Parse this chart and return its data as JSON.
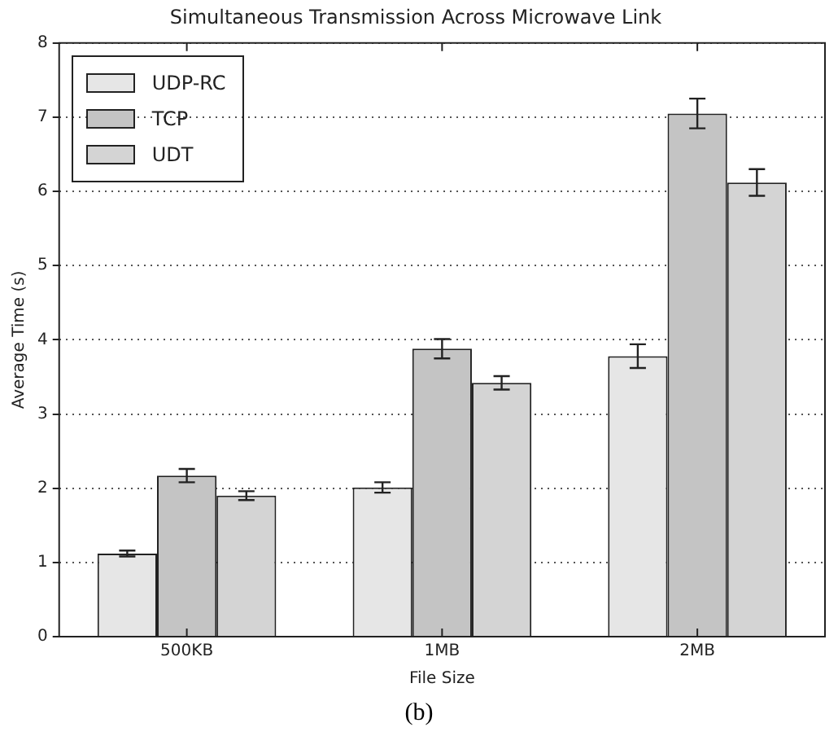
{
  "chart_data": {
    "type": "bar",
    "title": "Simultaneous Transmission Across Microwave Link",
    "xlabel": "File Size",
    "ylabel": "Average Time (s)",
    "categories": [
      "500KB",
      "1MB",
      "2MB"
    ],
    "series": [
      {
        "name": "UDP-RC",
        "color": "#e6e6e6",
        "values": [
          1.12,
          2.01,
          3.78
        ],
        "errors": [
          0.04,
          0.07,
          0.16
        ]
      },
      {
        "name": "TCP",
        "color": "#c4c4c4",
        "values": [
          2.17,
          3.88,
          7.05
        ],
        "errors": [
          0.09,
          0.13,
          0.2
        ]
      },
      {
        "name": "UDT",
        "color": "#d4d4d4",
        "values": [
          1.9,
          3.42,
          6.12
        ],
        "errors": [
          0.06,
          0.09,
          0.18
        ]
      }
    ],
    "ylim": [
      0,
      8
    ],
    "yticks": [
      0,
      1,
      2,
      3,
      4,
      5,
      6,
      7,
      8
    ],
    "grid": "y",
    "legend": "top left",
    "line_style": "dotted",
    "annotations": [
      "(b)"
    ]
  }
}
